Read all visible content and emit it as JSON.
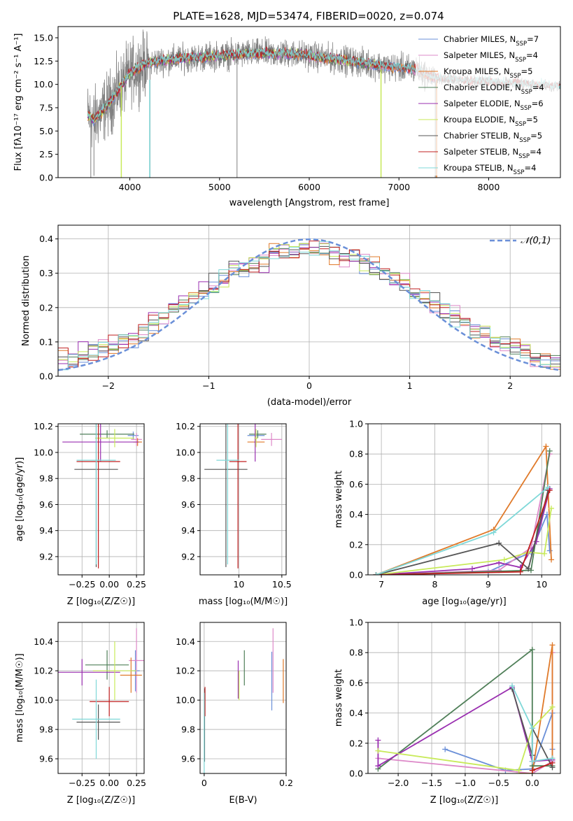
{
  "figure": {
    "title": "PLATE=1628, MJD=53474, FIBERID=0020, z=0.074"
  },
  "colors": {
    "Chabrier MILES": "#6a8fd8",
    "Salpeter MILES": "#dd88c8",
    "Kroupa MILES": "#e07a2a",
    "Chabrier ELODIE": "#4f7f58",
    "Salpeter ELODIE": "#9a2fb0",
    "Kroupa ELODIE": "#c8ea5a",
    "Chabrier STELIB": "#555555",
    "Salpeter STELIB": "#c02020",
    "Kroupa STELIB": "#7fd8d8",
    "data": "#808080",
    "normal": "#6a8fd8"
  },
  "chart_data": [
    {
      "id": "spectrum",
      "type": "line",
      "title": "PLATE=1628, MJD=53474, FIBERID=0020, z=0.074",
      "xlabel": "wavelength [Angstrom, rest frame]",
      "ylabel": "Flux [fλ10⁻¹⁷ erg cm⁻² s⁻¹ A⁻¹]",
      "xlim": [
        3200,
        8800
      ],
      "ylim": [
        0,
        16.2
      ],
      "xticks": [
        4000,
        5000,
        6000,
        7000,
        8000
      ],
      "yticks": [
        0.0,
        2.5,
        5.0,
        7.5,
        10.0,
        12.5,
        15.0
      ],
      "legend": "top-right",
      "grid": false,
      "continuum_x": [
        3530,
        3600,
        3700,
        3800,
        3900,
        4000,
        4100,
        4200,
        4400,
        4600,
        4800,
        5000,
        5200,
        5400,
        5600,
        5800,
        6000,
        6200,
        6400,
        6600,
        6800,
        7000,
        7200,
        7300,
        7420
      ],
      "continuum_y": [
        6.7,
        6.2,
        7.2,
        8.4,
        9.8,
        11.2,
        11.8,
        12.3,
        12.6,
        12.8,
        12.9,
        13.1,
        13.2,
        13.3,
        13.3,
        13.3,
        13.1,
        12.8,
        12.6,
        12.3,
        12.0,
        11.8,
        11.6,
        11.0,
        10.6
      ],
      "series": [
        {
          "name": "Chabrier MILES, N_SSP=7",
          "end": 7420
        },
        {
          "name": "Salpeter MILES, N_SSP=4",
          "end": 7420
        },
        {
          "name": "Kroupa MILES, N_SSP=5",
          "end": 7420
        },
        {
          "name": "Chabrier ELODIE, N_SSP=4",
          "end": 6800
        },
        {
          "name": "Salpeter ELODIE, N_SSP=6",
          "end": 6800
        },
        {
          "name": "Kroupa ELODIE, N_SSP=5",
          "end": 6800
        },
        {
          "name": "Chabrier STELIB, N_SSP=5",
          "end": 8800
        },
        {
          "name": "Salpeter STELIB, N_SSP=4",
          "end": 8800
        },
        {
          "name": "Kroupa STELIB, N_SSP=4",
          "end": 8800
        }
      ]
    },
    {
      "id": "residuals",
      "type": "line",
      "xlabel": "(data-model)/error",
      "ylabel": "Normed distribution",
      "xlim": [
        -2.5,
        2.5
      ],
      "ylim": [
        0,
        0.44
      ],
      "xticks": [
        -2,
        -1,
        0,
        1,
        2
      ],
      "yticks": [
        0.0,
        0.1,
        0.2,
        0.3,
        0.4
      ],
      "grid": true,
      "legend": "top-right",
      "reference": "𝒩(0,1)",
      "bin_width": 0.1
    },
    {
      "id": "age_vs_Z",
      "type": "scatter",
      "xlabel": "Z [log₁₀(Z/Z☉)]",
      "ylabel": "age  [log₁₀(age/yr)]",
      "xlim": [
        -0.47,
        0.32
      ],
      "ylim": [
        9.06,
        10.22
      ],
      "xticks": [
        -0.25,
        0.0,
        0.25
      ],
      "xticklabels": [
        "−0.25",
        "0.00",
        "0.25"
      ],
      "yticks": [
        9.2,
        9.4,
        9.6,
        9.8,
        10.0,
        10.2
      ],
      "points": [
        {
          "series": "Chabrier MILES",
          "x": 0.22,
          "xerr": 0.05,
          "y": 10.13,
          "yerr": 0.03
        },
        {
          "series": "Salpeter MILES",
          "x": 0.25,
          "xerr": 0.05,
          "y": 10.1,
          "yerr": 0.05
        },
        {
          "series": "Kroupa MILES",
          "x": 0.26,
          "xerr": 0.04,
          "y": 10.08,
          "yerr": 0.03
        },
        {
          "series": "Chabrier ELODIE",
          "x": -0.02,
          "xerr": 0.25,
          "y": 10.14,
          "yerr": 0.03
        },
        {
          "series": "Salpeter ELODIE",
          "x": -0.08,
          "xerr": 0.35,
          "y": 10.08,
          "yerr": 0.15
        },
        {
          "series": "Kroupa ELODIE",
          "x": 0.05,
          "xerr": 0.18,
          "y": 10.11,
          "yerr": 0.07
        },
        {
          "series": "Chabrier STELIB",
          "x": -0.12,
          "xerr": 0.2,
          "y": 9.87,
          "yerr": 0.75
        },
        {
          "series": "Salpeter STELIB",
          "x": -0.1,
          "xerr": 0.2,
          "y": 9.93,
          "yerr": 0.82
        },
        {
          "series": "Kroupa STELIB",
          "x": -0.12,
          "xerr": 0.18,
          "y": 9.94,
          "yerr": 0.8
        }
      ]
    },
    {
      "id": "age_vs_mass",
      "type": "scatter",
      "xlabel": "mass [log₁₀(M/M☉)]",
      "xlim": [
        9.55,
        10.55
      ],
      "ylim": [
        9.06,
        10.22
      ],
      "xticks": [
        10.0,
        10.5
      ],
      "yticks": [
        9.2,
        9.4,
        9.6,
        9.8,
        10.0,
        10.2
      ],
      "points": [
        {
          "series": "Chabrier MILES",
          "x": 10.2,
          "xerr": 0.1,
          "y": 10.13,
          "yerr": 0.03
        },
        {
          "series": "Salpeter MILES",
          "x": 10.38,
          "xerr": 0.12,
          "y": 10.1,
          "yerr": 0.05
        },
        {
          "series": "Kroupa MILES",
          "x": 10.2,
          "xerr": 0.1,
          "y": 10.08,
          "yerr": 0.03
        },
        {
          "series": "Chabrier ELODIE",
          "x": 10.22,
          "xerr": 0.1,
          "y": 10.14,
          "yerr": 0.03
        },
        {
          "series": "Salpeter ELODIE",
          "x": 10.19,
          "xerr": 0.01,
          "y": 10.08,
          "yerr": 0.15
        },
        {
          "series": "Kroupa ELODIE",
          "x": 10.2,
          "xerr": 0.02,
          "y": 10.11,
          "yerr": 0.07
        },
        {
          "series": "Chabrier STELIB",
          "x": 9.85,
          "xerr": 0.25,
          "y": 9.87,
          "yerr": 0.75
        },
        {
          "series": "Salpeter STELIB",
          "x": 9.99,
          "xerr": 0.1,
          "y": 9.93,
          "yerr": 0.82
        },
        {
          "series": "Kroupa STELIB",
          "x": 9.87,
          "xerr": 0.13,
          "y": 9.94,
          "yerr": 0.8
        }
      ]
    },
    {
      "id": "weight_vs_age",
      "type": "line",
      "xlabel": "age  [log₁₀(age/yr)]",
      "ylabel": "mass weight",
      "xlim": [
        6.75,
        10.35
      ],
      "ylim": [
        0,
        1
      ],
      "xticks": [
        7,
        8,
        9,
        10
      ],
      "yticks": [
        0.0,
        0.2,
        0.4,
        0.6,
        0.8,
        1.0
      ],
      "grid": true,
      "series": [
        {
          "name": "Chabrier MILES",
          "x": [
            6.9,
            9.0,
            9.8,
            10.1,
            10.15
          ],
          "y": [
            0.0,
            0.02,
            0.15,
            0.4,
            0.16
          ]
        },
        {
          "name": "Salpeter MILES",
          "x": [
            6.9,
            9.2,
            9.8,
            10.15
          ],
          "y": [
            0.0,
            0.03,
            0.18,
            0.8
          ]
        },
        {
          "name": "Kroupa MILES",
          "x": [
            6.9,
            9.1,
            10.08,
            10.18
          ],
          "y": [
            0.0,
            0.3,
            0.85,
            0.1
          ]
        },
        {
          "name": "Chabrier ELODIE",
          "x": [
            6.9,
            9.8,
            10.15
          ],
          "y": [
            0.0,
            0.03,
            0.82
          ]
        },
        {
          "name": "Salpeter ELODIE",
          "x": [
            6.9,
            8.7,
            9.2,
            9.6,
            9.9,
            10.15
          ],
          "y": [
            0.0,
            0.04,
            0.08,
            0.05,
            0.22,
            0.57
          ]
        },
        {
          "name": "Kroupa ELODIE",
          "x": [
            6.9,
            9.3,
            9.75,
            10.05,
            10.18
          ],
          "y": [
            0.0,
            0.1,
            0.15,
            0.14,
            0.44
          ]
        },
        {
          "name": "Chabrier STELIB",
          "x": [
            6.9,
            9.2,
            9.75,
            10.12
          ],
          "y": [
            0.0,
            0.21,
            0.04,
            0.56
          ]
        },
        {
          "name": "Salpeter STELIB",
          "x": [
            6.9,
            9.6,
            10.15
          ],
          "y": [
            0.0,
            0.02,
            0.56
          ]
        },
        {
          "name": "Kroupa STELIB",
          "x": [
            6.9,
            9.1,
            10.12
          ],
          "y": [
            0.0,
            0.28,
            0.58
          ]
        }
      ]
    },
    {
      "id": "mass_vs_Z",
      "type": "scatter",
      "xlabel": "Z [log₁₀(Z/Z☉)]",
      "ylabel": "mass [log₁₀(M/M☉)]",
      "xlim": [
        -0.47,
        0.32
      ],
      "ylim": [
        9.5,
        10.53
      ],
      "xticks": [
        -0.25,
        0.0,
        0.25
      ],
      "xticklabels": [
        "−0.25",
        "0.00",
        "0.25"
      ],
      "yticks": [
        9.6,
        9.8,
        10.0,
        10.2,
        10.4
      ],
      "points": [
        {
          "series": "Chabrier MILES",
          "x": 0.24,
          "xerr": 0.04,
          "y": 10.2,
          "yerr": 0.14
        },
        {
          "series": "Salpeter MILES",
          "x": 0.25,
          "xerr": 0.07,
          "y": 10.27,
          "yerr": 0.22
        },
        {
          "series": "Kroupa MILES",
          "x": 0.2,
          "xerr": 0.1,
          "y": 10.17,
          "yerr": 0.12
        },
        {
          "series": "Chabrier ELODIE",
          "x": -0.02,
          "xerr": 0.2,
          "y": 10.24,
          "yerr": 0.1
        },
        {
          "series": "Salpeter ELODIE",
          "x": -0.25,
          "xerr": 0.35,
          "y": 10.19,
          "yerr": 0.09
        },
        {
          "series": "Kroupa ELODIE",
          "x": 0.05,
          "xerr": 0.2,
          "y": 10.2,
          "yerr": 0.2
        },
        {
          "series": "Chabrier STELIB",
          "x": -0.1,
          "xerr": 0.2,
          "y": 9.85,
          "yerr": 0.12
        },
        {
          "series": "Salpeter STELIB",
          "x": 0.0,
          "xerr": 0.18,
          "y": 9.99,
          "yerr": 0.1
        },
        {
          "series": "Kroupa STELIB",
          "x": -0.12,
          "xerr": 0.22,
          "y": 9.87,
          "yerr": 0.27
        }
      ]
    },
    {
      "id": "mass_vs_EBV",
      "type": "scatter",
      "xlabel": "E(B-V)",
      "xlim": [
        -0.01,
        0.2
      ],
      "ylim": [
        9.5,
        10.53
      ],
      "xticks": [
        0.0,
        0.2
      ],
      "yticks": [
        9.6,
        9.8,
        10.0,
        10.2,
        10.4
      ],
      "points": [
        {
          "series": "Chabrier MILES",
          "x": 0.165,
          "y": 10.13,
          "yerr": 0.2
        },
        {
          "series": "Salpeter MILES",
          "x": 0.168,
          "y": 10.27,
          "yerr": 0.22
        },
        {
          "series": "Kroupa MILES",
          "x": 0.193,
          "y": 10.13,
          "yerr": 0.15
        },
        {
          "series": "Chabrier ELODIE",
          "x": 0.098,
          "y": 10.22,
          "yerr": 0.12
        },
        {
          "series": "Salpeter ELODIE",
          "x": 0.083,
          "y": 10.14,
          "yerr": 0.13
        },
        {
          "series": "Kroupa ELODIE",
          "x": 0.085,
          "y": 10.1,
          "yerr": 0.1
        },
        {
          "series": "Chabrier STELIB",
          "x": 0.001,
          "y": 9.83,
          "yerr": 0.25
        },
        {
          "series": "Salpeter STELIB",
          "x": 0.002,
          "y": 9.99,
          "yerr": 0.1
        },
        {
          "series": "Kroupa STELIB",
          "x": 0.0,
          "y": 9.77,
          "yerr": 0.28
        }
      ]
    },
    {
      "id": "weight_vs_Z",
      "type": "line",
      "xlabel": "Z [log₁₀(Z/Z☉)]",
      "ylabel": "mass weight",
      "xlim": [
        -2.45,
        0.42
      ],
      "ylim": [
        0,
        1
      ],
      "xticks": [
        -2.0,
        -1.5,
        -1.0,
        -0.5,
        0.0
      ],
      "xticklabels": [
        "−2.0",
        "−1.5",
        "−1.0",
        "−0.5",
        "0.0"
      ],
      "yticks": [
        0.0,
        0.2,
        0.4,
        0.6,
        0.8,
        1.0
      ],
      "grid": true,
      "series": [
        {
          "name": "Chabrier MILES",
          "x": [
            -1.3,
            -0.4,
            0.0,
            0.3,
            0.3
          ],
          "y": [
            0.16,
            0.02,
            0.03,
            0.4,
            0.16
          ]
        },
        {
          "name": "Salpeter MILES",
          "x": [
            -2.3,
            0.0,
            0.3,
            0.3
          ],
          "y": [
            0.1,
            0.0,
            0.08,
            0.8
          ]
        },
        {
          "name": "Kroupa MILES",
          "x": [
            -0.2,
            0.0,
            0.3,
            0.3
          ],
          "y": [
            0.0,
            0.0,
            0.85,
            0.1
          ]
        },
        {
          "name": "Chabrier ELODIE",
          "x": [
            -2.3,
            0.0,
            0.0,
            0.3
          ],
          "y": [
            0.03,
            0.82,
            0.05,
            0.05
          ]
        },
        {
          "name": "Salpeter ELODIE",
          "x": [
            -2.3,
            -2.3,
            -0.3,
            0.0,
            0.3
          ],
          "y": [
            0.22,
            0.05,
            0.57,
            0.08,
            0.09
          ]
        },
        {
          "name": "Kroupa ELODIE",
          "x": [
            -2.3,
            -0.2,
            0.0,
            0.3
          ],
          "y": [
            0.15,
            0.02,
            0.3,
            0.44
          ]
        },
        {
          "name": "Chabrier STELIB",
          "x": [
            -0.3,
            0.0,
            0.0,
            0.3
          ],
          "y": [
            0.56,
            0.12,
            0.3,
            0.04
          ]
        },
        {
          "name": "Salpeter STELIB",
          "x": [
            0.0,
            0.3
          ],
          "y": [
            0.02,
            0.07
          ]
        },
        {
          "name": "Kroupa STELIB",
          "x": [
            -0.3,
            0.0,
            0.0,
            0.3
          ],
          "y": [
            0.58,
            0.3,
            0.08,
            0.1
          ]
        }
      ]
    }
  ]
}
